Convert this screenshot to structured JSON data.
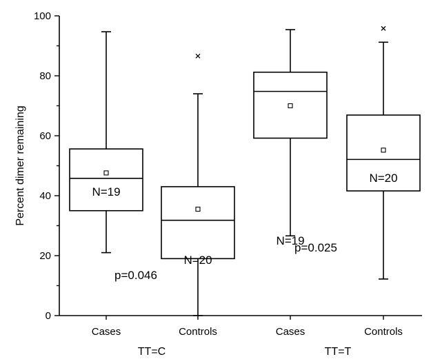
{
  "chart_data": {
    "type": "box",
    "ylabel": "Percent dimer remaining",
    "ylim": [
      0,
      100
    ],
    "yticks": [
      0,
      20,
      40,
      60,
      80,
      100
    ],
    "groups": [
      {
        "label": "TT=C",
        "categories": [
          "Cases",
          "Controls"
        ],
        "pvalue": "p=0.046"
      },
      {
        "label": "TT=T",
        "categories": [
          "Cases",
          "Controls"
        ],
        "pvalue": "p=0.025"
      }
    ],
    "boxes": [
      {
        "group": "TT=C",
        "category": "Cases",
        "n_label": "N=19",
        "min": 21,
        "q1": 35,
        "median": 45.8,
        "q3": 55.6,
        "max": 94.7,
        "mean": 47.6,
        "outliers": []
      },
      {
        "group": "TT=C",
        "category": "Controls",
        "n_label": "N=20",
        "min": 0,
        "q1": 19,
        "median": 31.8,
        "q3": 43,
        "max": 74,
        "mean": 35.5,
        "outliers": [
          86.6
        ]
      },
      {
        "group": "TT=T",
        "category": "Cases",
        "n_label": "N=19",
        "min": 26.6,
        "q1": 59.2,
        "median": 74.8,
        "q3": 81.2,
        "max": 95.4,
        "mean": 70,
        "outliers": []
      },
      {
        "group": "TT=T",
        "category": "Controls",
        "n_label": "N=20",
        "min": 12.2,
        "q1": 41.6,
        "median": 52.1,
        "q3": 66.9,
        "max": 91.2,
        "mean": 55.2,
        "outliers": [
          95.8
        ]
      }
    ]
  }
}
